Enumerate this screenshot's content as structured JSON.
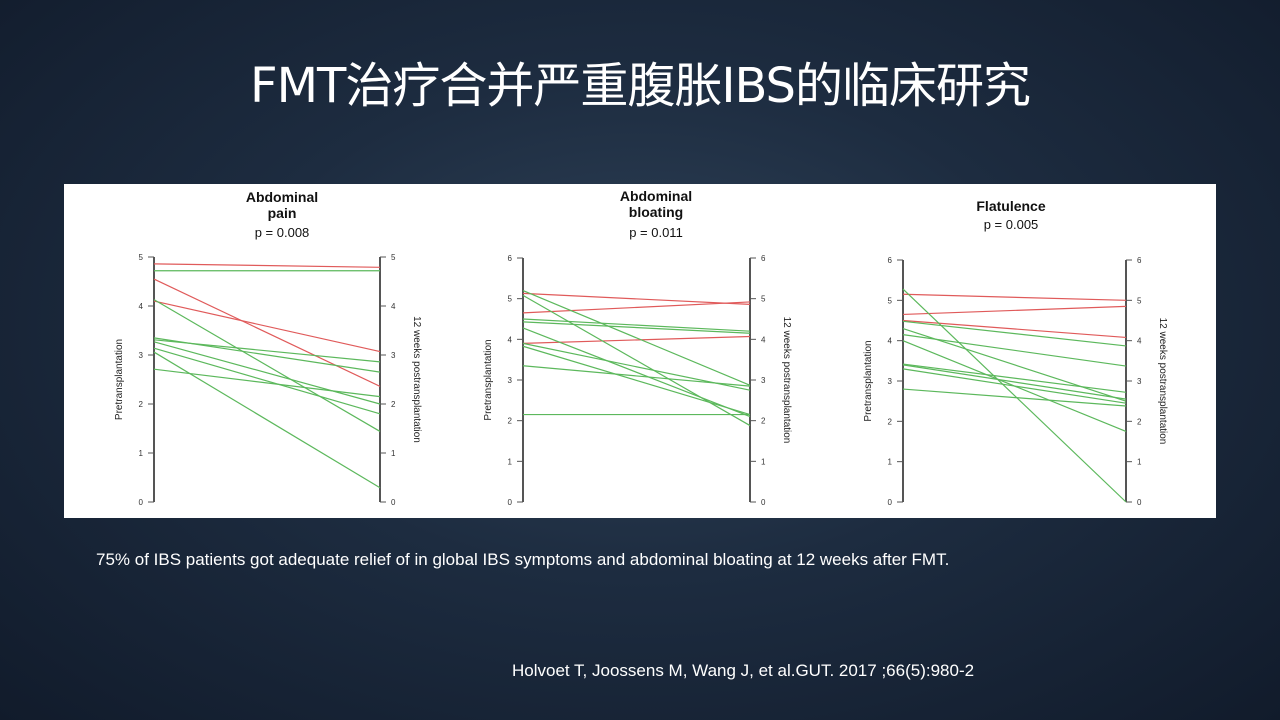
{
  "slide": {
    "title": "FMT治疗合并严重腹胀IBS的临床研究",
    "caption": "75% of IBS patients got adequate relief of in global IBS symptoms and abdominal bloating at 12 weeks after FMT.",
    "citation": "Holvoet T, Joossens M, Wang J, et al.GUT. 2017 ;66(5):980-2"
  },
  "colors": {
    "worse_or_unchanged": "#e05a5a",
    "improved": "#5cb85c",
    "axis": "#555555"
  },
  "chart_data": [
    {
      "type": "line",
      "title_lines": [
        "Abdominal",
        "pain"
      ],
      "subtitle": "p = 0.008",
      "xlabel_left": "Pretransplantation",
      "xlabel_right": "12 weeks postransplantation",
      "ylim": [
        0,
        5
      ],
      "ticks": [
        "0",
        "1",
        "2",
        "3",
        "4",
        "5"
      ],
      "grid": false,
      "series": [
        {
          "color": "red",
          "values": [
            4.86,
            4.79
          ]
        },
        {
          "color": "green",
          "values": [
            4.72,
            4.72
          ]
        },
        {
          "color": "red",
          "values": [
            4.55,
            2.36
          ]
        },
        {
          "color": "red",
          "values": [
            4.1,
            3.07
          ]
        },
        {
          "color": "green",
          "values": [
            4.13,
            1.44
          ]
        },
        {
          "color": "green",
          "values": [
            3.35,
            2.65
          ]
        },
        {
          "color": "green",
          "values": [
            3.31,
            2.86
          ]
        },
        {
          "color": "green",
          "values": [
            3.27,
            2.0
          ]
        },
        {
          "color": "green",
          "values": [
            3.14,
            1.8
          ]
        },
        {
          "color": "green",
          "values": [
            3.06,
            0.29
          ]
        },
        {
          "color": "green",
          "values": [
            2.71,
            2.15
          ]
        }
      ]
    },
    {
      "type": "line",
      "title_lines": [
        "Abdominal",
        "bloating"
      ],
      "subtitle": "p = 0.011",
      "xlabel_left": "Pretransplantation",
      "xlabel_right": "12 weeks postransplantation",
      "ylim": [
        0,
        6
      ],
      "ticks": [
        "0",
        "1",
        "2",
        "3",
        "4",
        "5",
        "6"
      ],
      "grid": false,
      "series": [
        {
          "color": "red",
          "values": [
            5.13,
            4.86
          ]
        },
        {
          "color": "red",
          "values": [
            4.65,
            4.92
          ]
        },
        {
          "color": "red",
          "values": [
            3.9,
            4.07
          ]
        },
        {
          "color": "green",
          "values": [
            5.2,
            2.87
          ]
        },
        {
          "color": "green",
          "values": [
            5.08,
            1.88
          ]
        },
        {
          "color": "green",
          "values": [
            4.5,
            4.2
          ]
        },
        {
          "color": "green",
          "values": [
            4.43,
            4.15
          ]
        },
        {
          "color": "green",
          "values": [
            4.28,
            2.1
          ]
        },
        {
          "color": "green",
          "values": [
            3.9,
            2.75
          ]
        },
        {
          "color": "green",
          "values": [
            3.83,
            2.15
          ]
        },
        {
          "color": "green",
          "values": [
            3.35,
            2.85
          ]
        },
        {
          "color": "green",
          "values": [
            2.15,
            2.15
          ]
        }
      ]
    },
    {
      "type": "line",
      "title_lines": [
        "Flatulence"
      ],
      "subtitle": "p = 0.005",
      "xlabel_left": "Pretransplantation",
      "xlabel_right": "12 weeks postransplantation",
      "ylim": [
        0,
        6
      ],
      "ticks": [
        "0",
        "1",
        "2",
        "3",
        "4",
        "5",
        "6"
      ],
      "grid": false,
      "series": [
        {
          "color": "red",
          "values": [
            5.15,
            5.0
          ]
        },
        {
          "color": "red",
          "values": [
            4.65,
            4.85
          ]
        },
        {
          "color": "red",
          "values": [
            4.5,
            4.08
          ]
        },
        {
          "color": "green",
          "values": [
            5.28,
            0.0
          ]
        },
        {
          "color": "green",
          "values": [
            4.48,
            3.87
          ]
        },
        {
          "color": "green",
          "values": [
            4.3,
            2.5
          ]
        },
        {
          "color": "green",
          "values": [
            4.15,
            3.37
          ]
        },
        {
          "color": "green",
          "values": [
            4.0,
            1.75
          ]
        },
        {
          "color": "green",
          "values": [
            3.42,
            2.72
          ]
        },
        {
          "color": "green",
          "values": [
            3.4,
            2.55
          ]
        },
        {
          "color": "green",
          "values": [
            3.3,
            2.45
          ]
        },
        {
          "color": "green",
          "values": [
            2.8,
            2.38
          ]
        }
      ]
    }
  ]
}
